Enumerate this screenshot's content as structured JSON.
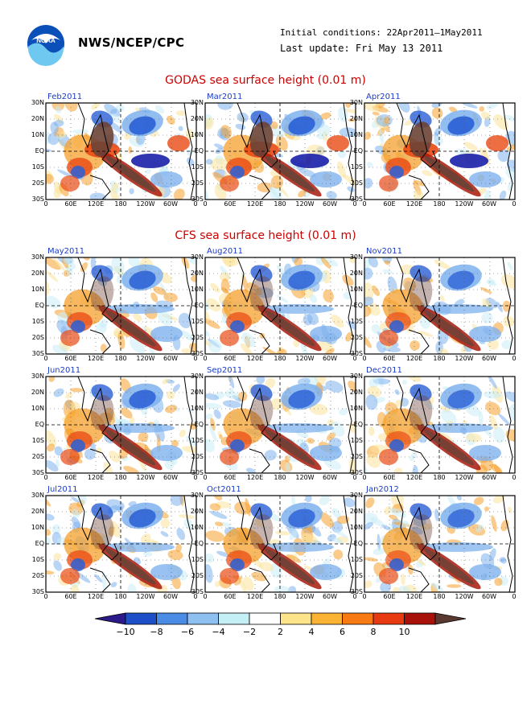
{
  "header": {
    "org": "NWS/NCEP/CPC",
    "logo_text": "NOAA",
    "initial_conditions": "Initial conditions: 22Apr2011–1May2011",
    "last_update": "Last update: Fri May 13 2011"
  },
  "sections": [
    {
      "title": "GODAS sea surface height (0.01 m)"
    },
    {
      "title": "CFS sea surface height (0.01 m)"
    }
  ],
  "panels": [
    {
      "label": "Feb2011"
    },
    {
      "label": "Mar2011"
    },
    {
      "label": "Apr2011"
    },
    {
      "label": "May2011"
    },
    {
      "label": "Aug2011"
    },
    {
      "label": "Nov2011"
    },
    {
      "label": "Jun2011"
    },
    {
      "label": "Sep2011"
    },
    {
      "label": "Dec2011"
    },
    {
      "label": "Jul2011"
    },
    {
      "label": "Oct2011"
    },
    {
      "label": "Jan2012"
    }
  ],
  "axes": {
    "lat_labels": [
      "30N",
      "20N",
      "10N",
      "EQ",
      "10S",
      "20S",
      "30S"
    ],
    "lon_labels": [
      "0",
      "60E",
      "120E",
      "180",
      "120W",
      "60W",
      "0"
    ]
  },
  "colorbar": {
    "labels": [
      "−10",
      "−8",
      "−6",
      "−4",
      "−2",
      "2",
      "4",
      "6",
      "8",
      "10"
    ],
    "colors": [
      "#2b1a8a",
      "#1d4fc8",
      "#4a8be6",
      "#8ec1f2",
      "#c4f0f5",
      "#ffffff",
      "#fde38a",
      "#fbb336",
      "#f77a12",
      "#e83a10",
      "#a8120a",
      "#5a3a30"
    ]
  },
  "palette": {
    "deep_blue": "#1a1fa8",
    "blue": "#2a5fd6",
    "light_blue": "#7fb2ee",
    "pale_blue": "#c9ecf5",
    "pale_yellow": "#fbe39a",
    "orange": "#f6a02c",
    "red_orange": "#ea4a14",
    "dark_red": "#a81a0c",
    "brown": "#6b4236",
    "title_red": "#cc0000",
    "label_blue": "#1a3cc8"
  }
}
